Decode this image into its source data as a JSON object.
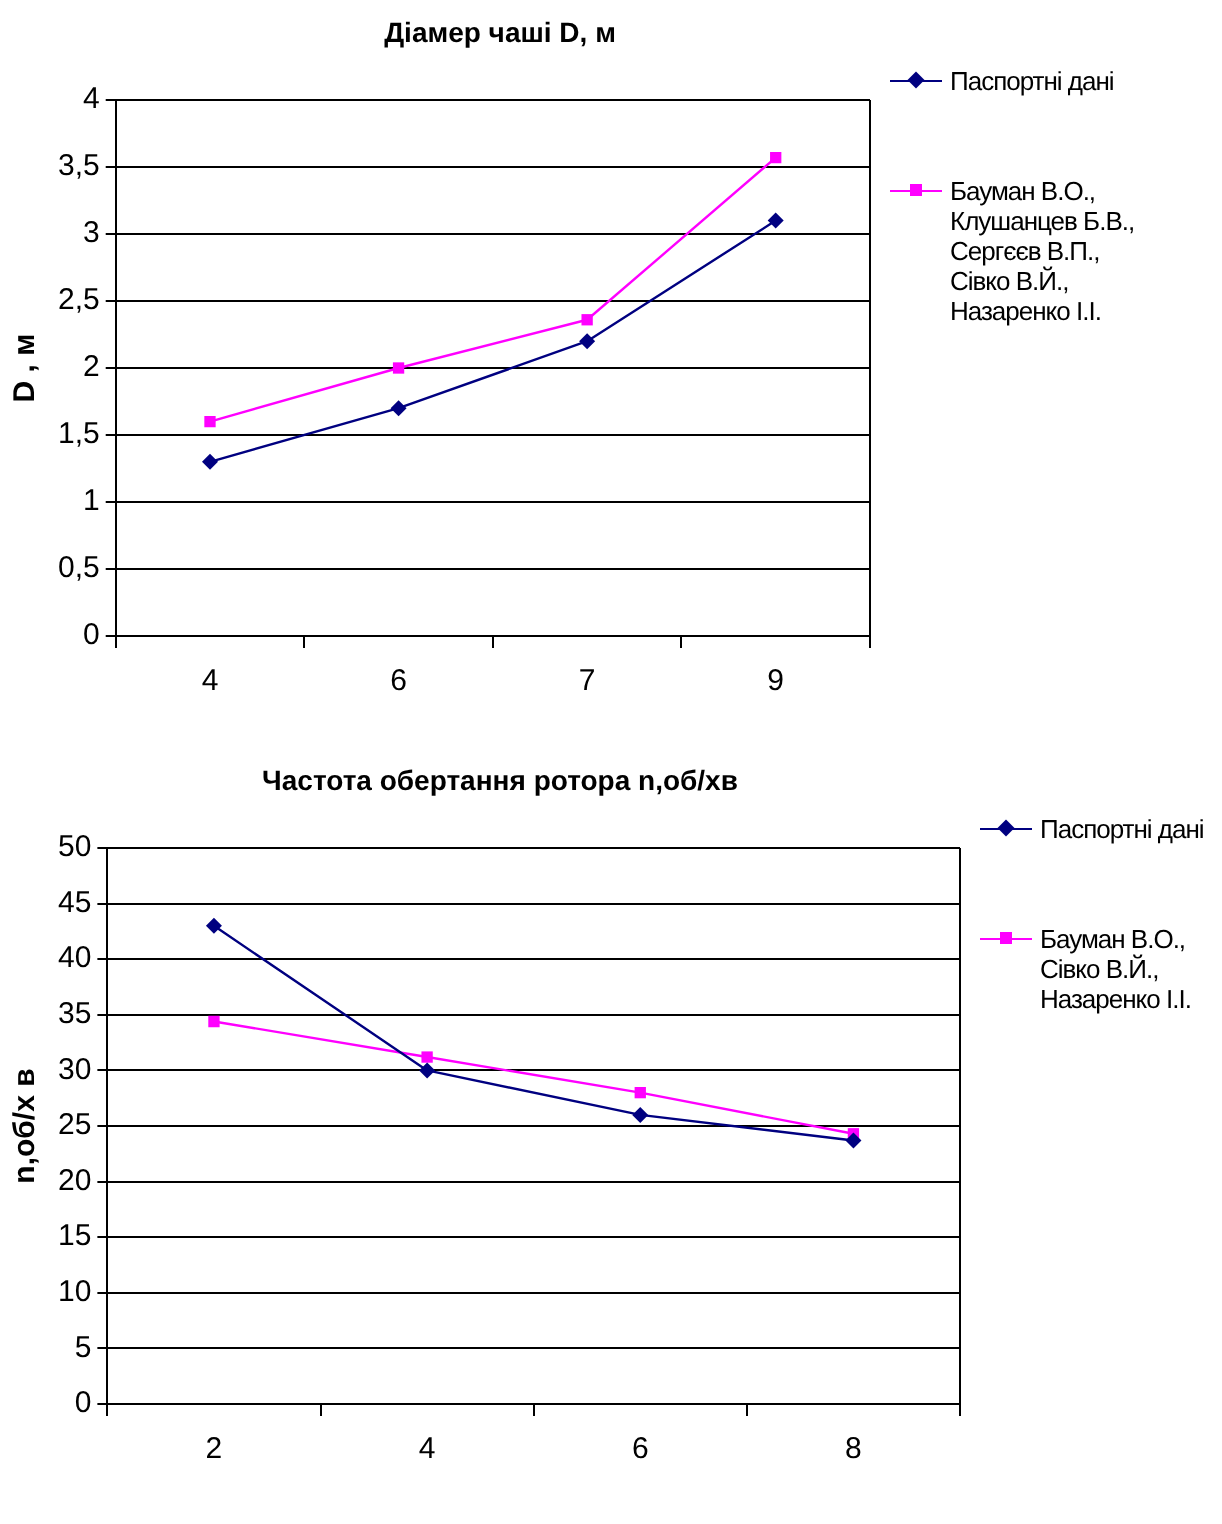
{
  "chart_data": [
    {
      "type": "line",
      "title": "Діамер чаші  D, м",
      "ylabel": "D , м",
      "categories": [
        "4",
        "6",
        "7",
        "9"
      ],
      "ylim": [
        0,
        4
      ],
      "yticks": [
        0,
        {
          "value": 0.5,
          "label": "0,5"
        },
        1,
        {
          "value": 1.5,
          "label": "1,5"
        },
        2,
        {
          "value": 2.5,
          "label": "2,5"
        },
        3,
        {
          "value": 3.5,
          "label": "3,5"
        },
        4
      ],
      "grid": "y",
      "legend": "right",
      "series": [
        {
          "name": "Паспортні дані",
          "color": "#000080",
          "marker": "diamond",
          "values": [
            1.3,
            1.7,
            2.2,
            3.1
          ]
        },
        {
          "name": "Бауман В.О., Клушанцев Б.В., Сергєєв В.П., Сівко В.Й., Назаренко І.І.",
          "color": "#ff00ff",
          "marker": "square",
          "values": [
            1.6,
            2.0,
            2.36,
            3.57
          ]
        }
      ]
    },
    {
      "type": "line",
      "title": "Частота обертання ротора n,об/хв",
      "ylabel": "n,об/х в",
      "categories": [
        "2",
        "4",
        "6",
        "8"
      ],
      "ylim": [
        0,
        50
      ],
      "yticks": [
        0,
        5,
        10,
        15,
        20,
        25,
        30,
        35,
        40,
        45,
        50
      ],
      "grid": "y",
      "legend": "right",
      "series": [
        {
          "name": "Паспортні дані",
          "color": "#000080",
          "marker": "diamond",
          "values": [
            43,
            30,
            26,
            23.7
          ]
        },
        {
          "name": "Бауман В.О., Сівко В.Й., Назаренко І.І.",
          "color": "#ff00ff",
          "marker": "square",
          "values": [
            34.4,
            31.2,
            28,
            24.3
          ]
        }
      ]
    }
  ]
}
